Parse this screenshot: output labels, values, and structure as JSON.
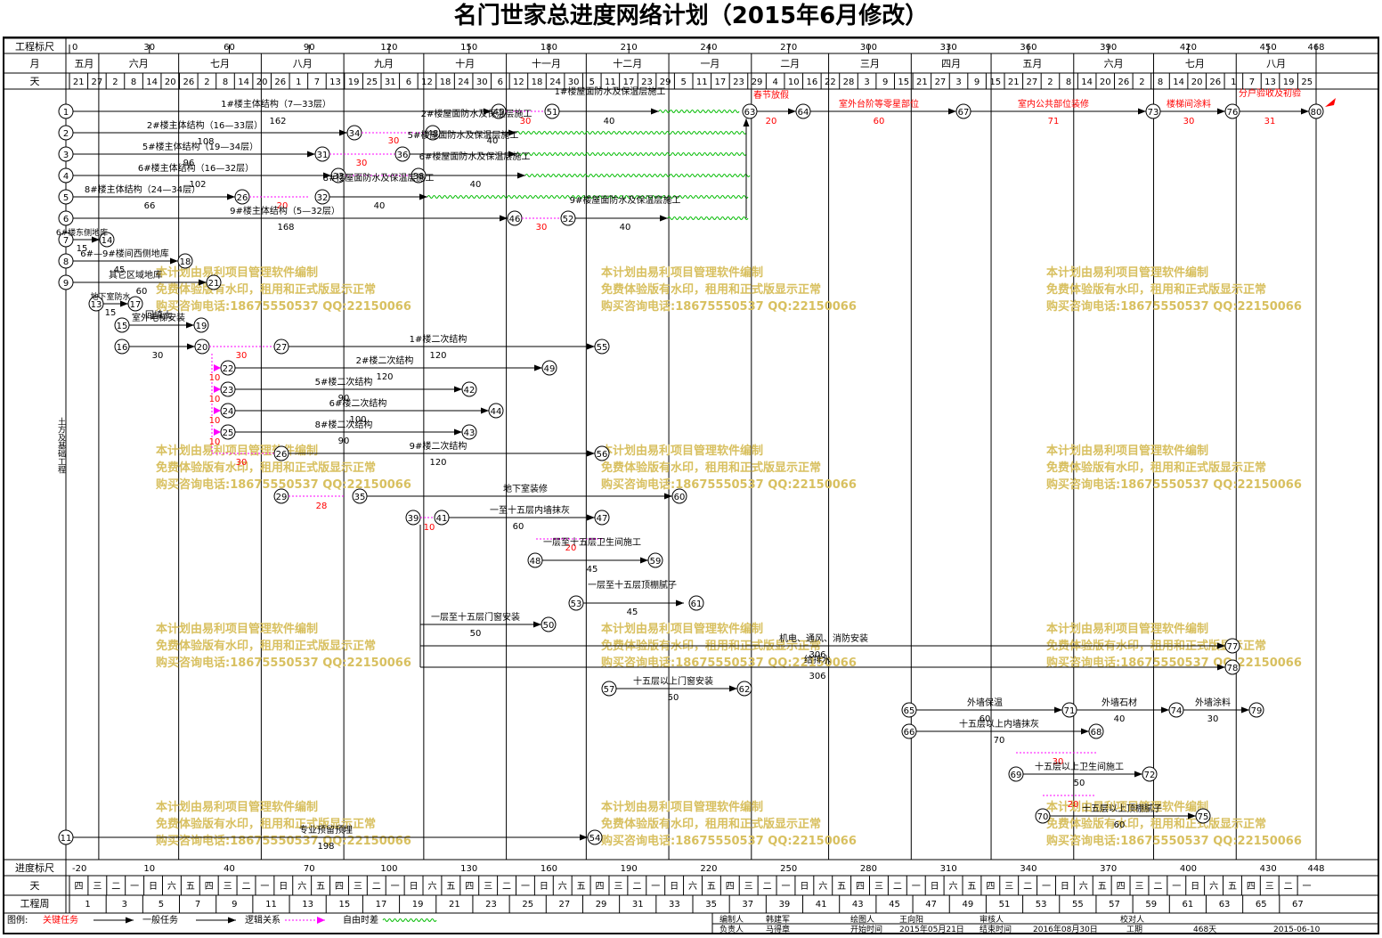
{
  "title": "名门世家总进度网络计划（2015年6月修改）",
  "scale": {
    "row1_label": "工程标尺",
    "row2_label": "月",
    "row3_label": "天",
    "day_ticks": [
      "0",
      "30",
      "60",
      "90",
      "120",
      "150",
      "180",
      "210",
      "240",
      "270",
      "300",
      "330",
      "360",
      "390",
      "420",
      "450",
      "468"
    ],
    "months": [
      "五月",
      "六月",
      "七月",
      "八月",
      "九月",
      "十月",
      "十一月",
      "十二月",
      "一月",
      "二月",
      "三月",
      "四月",
      "五月",
      "六月",
      "七月",
      "八月"
    ],
    "days": [
      "21",
      "27",
      "2",
      "8",
      "14",
      "20",
      "26",
      "2",
      "8",
      "14",
      "20",
      "26",
      "1",
      "7",
      "13",
      "19",
      "25",
      "31",
      "6",
      "12",
      "18",
      "24",
      "30",
      "6",
      "12",
      "18",
      "24",
      "30",
      "5",
      "11",
      "17",
      "23",
      "29",
      "5",
      "11",
      "17",
      "23",
      "29",
      "4",
      "10",
      "16",
      "22",
      "28",
      "3",
      "9",
      "15",
      "21",
      "27",
      "3",
      "9",
      "15",
      "21",
      "27",
      "2",
      "8",
      "14",
      "20",
      "26",
      "2",
      "8",
      "14",
      "20",
      "26",
      "1",
      "7",
      "13",
      "19",
      "25"
    ]
  },
  "bottom": {
    "progress_label": "进度标尺",
    "day_label": "天",
    "week_label": "工程周",
    "progress_ticks": [
      "-20",
      "10",
      "40",
      "70",
      "100",
      "130",
      "160",
      "190",
      "220",
      "250",
      "280",
      "310",
      "340",
      "370",
      "400",
      "430",
      "448"
    ],
    "weekdays": [
      "四",
      "三",
      "二",
      "一",
      "日",
      "六",
      "五",
      "四",
      "三",
      "二",
      "一",
      "日",
      "六",
      "五",
      "四",
      "三",
      "二",
      "一",
      "日",
      "六",
      "五",
      "四",
      "三",
      "二",
      "一",
      "日",
      "六",
      "五",
      "四",
      "三",
      "二",
      "一",
      "日",
      "六",
      "五",
      "四",
      "三",
      "二",
      "一",
      "日",
      "六",
      "五",
      "四",
      "三",
      "二",
      "一",
      "日",
      "六",
      "五",
      "四",
      "三",
      "二",
      "一",
      "日",
      "六",
      "五",
      "四",
      "三",
      "二",
      "一",
      "日",
      "六",
      "五",
      "四",
      "三",
      "二",
      "一"
    ],
    "weeks": [
      "1",
      "3",
      "5",
      "7",
      "9",
      "11",
      "13",
      "15",
      "17",
      "19",
      "21",
      "23",
      "25",
      "27",
      "29",
      "31",
      "33",
      "35",
      "37",
      "39",
      "41",
      "43",
      "45",
      "47",
      "49",
      "51",
      "53",
      "55",
      "57",
      "59",
      "61",
      "63",
      "65",
      "67"
    ]
  },
  "legend": {
    "label": "图例:",
    "critical": "关键任务",
    "general": "一般任务",
    "logic": "逻辑关系",
    "float": "自由时差",
    "compiler_label": "编制人",
    "compiler": "韩建军",
    "drawer_label": "绘图人",
    "drawer": "王向阳",
    "reviewer_label": "审核人",
    "checker_label": "校对人",
    "owner_label": "负责人",
    "owner": "马得章",
    "start_label": "开始时间",
    "start": "2015年05月21日",
    "end_label": "结束时间",
    "end": "2016年08月30日",
    "duration_label": "工期",
    "duration": "468天",
    "date": "2015-06-10"
  },
  "watermark": {
    "line1": "本计划由易利项目管理软件编制",
    "line2": "免费体验版有水印，租用和正式版显示正常",
    "line3": "购买咨询电话:18675550537 QQ:22150066"
  },
  "side_label": "土方及基础工程",
  "tasks": {
    "t1": "1#楼主体结构（7—33层）",
    "t1d": "162",
    "t1r": "1#楼屋面防水及保温层施工",
    "t1rd": "40",
    "t2": "2#楼主体结构（16—33层）",
    "t2d": "108",
    "t2r": "2#楼屋面防水及保温层施工",
    "t2rd": "40",
    "t3": "5#楼主体结构（19—34层）",
    "t3d": "96",
    "t3r": "5#楼屋面防水及保温层施工",
    "t4": "6#楼主体结构（16—32层）",
    "t4d": "102",
    "t4r": "6#楼屋面防水及保温层施工",
    "t4rd": "40",
    "t5": "8#楼主体结构（24—34层）",
    "t5d": "66",
    "t5r": "8#楼屋面防水及保温层施工",
    "t5rd": "40",
    "t6": "9#楼主体结构（5—32层）",
    "t6d": "168",
    "t6r": "9#楼屋面防水及保温层施工",
    "t6rd": "40",
    "spring": "春节放假",
    "spring_d": "20",
    "outdoor": "室外台阶等零星部位",
    "outdoor_d": "60",
    "public": "室内公共部位装修",
    "public_d": "71",
    "stair": "楼梯间涂料",
    "stair_d": "30",
    "accept": "分户验收及初验",
    "accept_d": "31",
    "east": "6#楼东侧地库",
    "east_d": "15",
    "mid": "6#—9#楼间西侧地库",
    "mid_d": "45",
    "other": "其它区域地库",
    "other_d": "60",
    "water": "地下室防水",
    "water_d": "15",
    "backfill": "回填土",
    "pipe": "室外电梯安装",
    "pipe_d": "30",
    "s1": "1#楼二次结构",
    "s1d": "120",
    "s2": "2#楼二次结构",
    "s2d": "120",
    "s5": "5#楼二次结构",
    "s5d": "90",
    "s6": "6#楼二次结构",
    "s6d": "100",
    "s8": "8#楼二次结构",
    "s8d": "90",
    "s9": "9#楼二次结构",
    "s9d": "120",
    "base": "地下室装修",
    "base_d": "120",
    "plaster": "一至十五层内墙抹灰",
    "plaster_d": "60",
    "bath": "一层至十五层卫生间施工",
    "bath_d": "45",
    "ceil": "一层至十五层顶棚腻子",
    "ceil_d": "45",
    "door": "一层至十五层门窗安装",
    "door_d": "50",
    "mep": "机电、通风、消防安装",
    "mep_d": "306",
    "plumb": "给排水",
    "plumb_d": "306",
    "upper_door": "十五层以上门窗安装",
    "upper_door_d": "50",
    "ext_ins": "外墙保温",
    "ext_ins_d": "60",
    "ext_stone": "外墙石材",
    "ext_stone_d": "40",
    "ext_paint": "外墙涂料",
    "ext_paint_d": "30",
    "up_plaster": "十五层以上内墙抹灰",
    "up_plaster_d": "70",
    "up_bath": "十五层以上卫生间施工",
    "up_bath_d": "50",
    "up_ceil": "十五层以上顶棚腻子",
    "up_ceil_d": "60",
    "embed": "专业预留预埋",
    "embed_d": "198"
  },
  "floats": [
    "30",
    "30",
    "30",
    "30",
    "20",
    "30",
    "10",
    "10",
    "10",
    "10",
    "30",
    "28",
    "10",
    "20",
    "10",
    "30",
    "20",
    "30"
  ],
  "colors": {
    "critical": "#ff0000",
    "general": "#000000",
    "float": "#ff00ff",
    "wave": "#00bb00",
    "watermark": "#d8c060"
  }
}
